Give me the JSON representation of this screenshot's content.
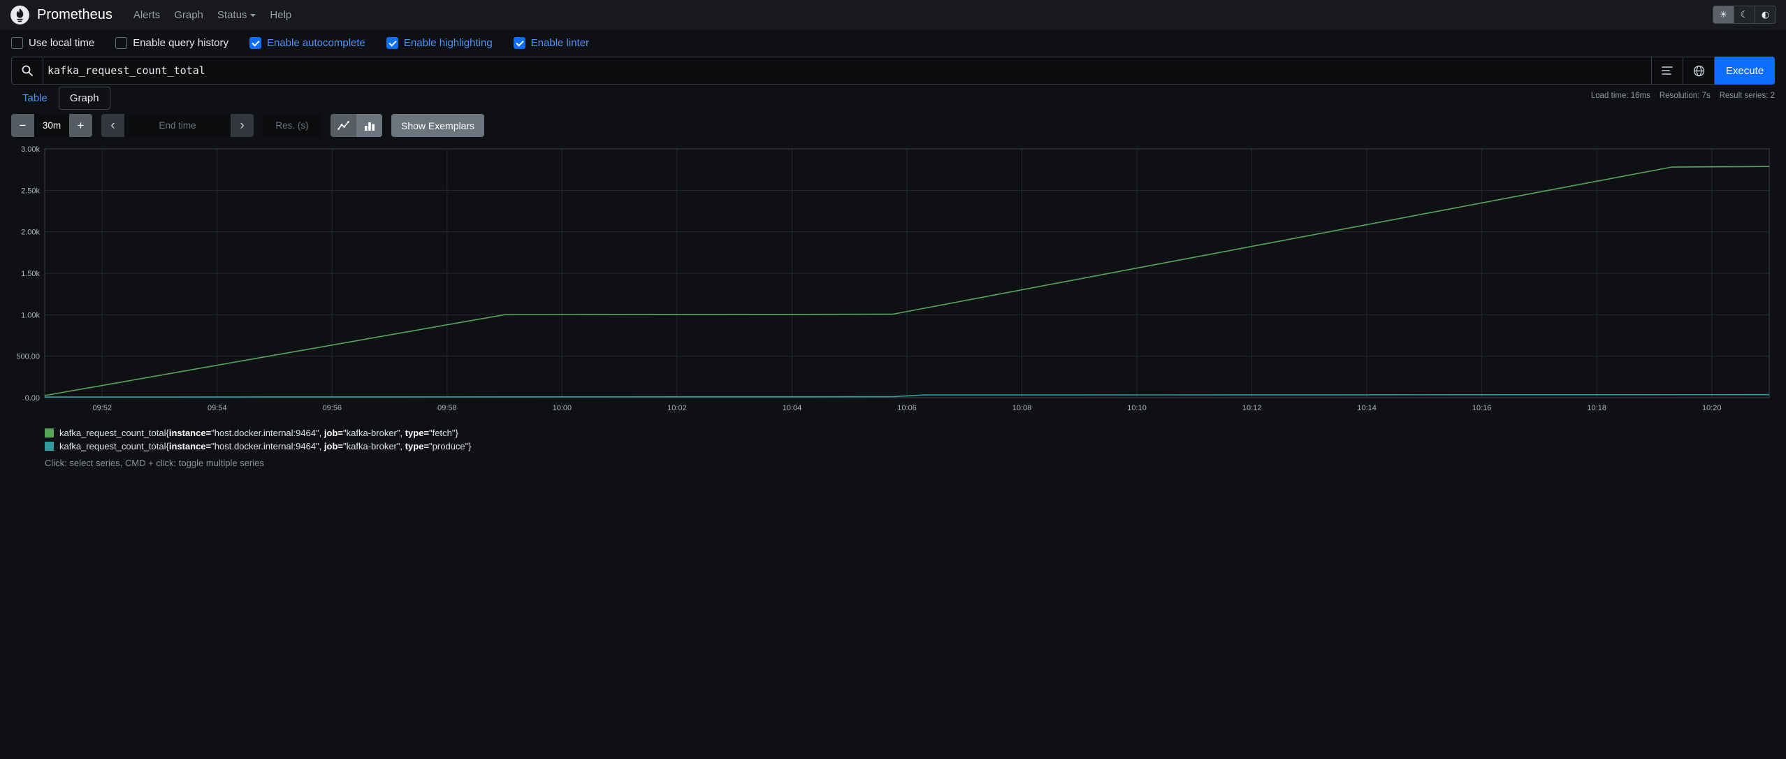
{
  "colors": {
    "accent_blue": "#0d6efd",
    "link_blue": "#4a94f8",
    "series_green": "#56a65a",
    "series_teal": "#2f9d9d"
  },
  "navbar": {
    "brand": "Prometheus",
    "links": [
      {
        "label": "Alerts"
      },
      {
        "label": "Graph"
      },
      {
        "label": "Status",
        "has_dropdown": true
      },
      {
        "label": "Help"
      }
    ],
    "theme_toggle": [
      {
        "name": "light",
        "icon": "sun-icon",
        "active": true
      },
      {
        "name": "dark",
        "icon": "moon-icon",
        "active": false
      },
      {
        "name": "auto",
        "icon": "circle-half-icon",
        "active": false
      }
    ]
  },
  "options_bar": {
    "items": [
      {
        "label": "Use local time",
        "checked": false
      },
      {
        "label": "Enable query history",
        "checked": false
      },
      {
        "label": "Enable autocomplete",
        "checked": true
      },
      {
        "label": "Enable highlighting",
        "checked": true
      },
      {
        "label": "Enable linter",
        "checked": true
      }
    ]
  },
  "query": {
    "value": "kafka_request_count_total",
    "execute_label": "Execute"
  },
  "stats": {
    "load_time": "Load time: 16ms",
    "resolution": "Resolution: 7s",
    "result_series": "Result series: 2"
  },
  "tabs": {
    "table": "Table",
    "graph": "Graph"
  },
  "controls": {
    "duration_value": "30m",
    "end_time_placeholder": "End time",
    "resolution_placeholder": "Res. (s)",
    "show_exemplars_label": "Show Exemplars"
  },
  "chart_data": {
    "type": "line",
    "x_axis": {
      "start_minutes": 0,
      "end_minutes": 30,
      "ticks": [
        {
          "t": 1,
          "label": "09:52"
        },
        {
          "t": 3,
          "label": "09:54"
        },
        {
          "t": 5,
          "label": "09:56"
        },
        {
          "t": 7,
          "label": "09:58"
        },
        {
          "t": 9,
          "label": "10:00"
        },
        {
          "t": 11,
          "label": "10:02"
        },
        {
          "t": 13,
          "label": "10:04"
        },
        {
          "t": 15,
          "label": "10:06"
        },
        {
          "t": 17,
          "label": "10:08"
        },
        {
          "t": 19,
          "label": "10:10"
        },
        {
          "t": 21,
          "label": "10:12"
        },
        {
          "t": 23,
          "label": "10:14"
        },
        {
          "t": 25,
          "label": "10:16"
        },
        {
          "t": 27,
          "label": "10:18"
        },
        {
          "t": 29,
          "label": "10:20"
        }
      ]
    },
    "y_axis": {
      "min": 0,
      "max": 3000,
      "ticks": [
        {
          "v": 0,
          "label": "0.00"
        },
        {
          "v": 500,
          "label": "500.00"
        },
        {
          "v": 1000,
          "label": "1.00k"
        },
        {
          "v": 1500,
          "label": "1.50k"
        },
        {
          "v": 2000,
          "label": "2.00k"
        },
        {
          "v": 2500,
          "label": "2.50k"
        },
        {
          "v": 3000,
          "label": "3.00k"
        }
      ]
    },
    "series": [
      {
        "metric": "kafka_request_count_total",
        "labels": [
          {
            "name": "instance",
            "value": "host.docker.internal:9464"
          },
          {
            "name": "job",
            "value": "kafka-broker"
          },
          {
            "name": "type",
            "value": "fetch"
          }
        ],
        "color": "#56a65a",
        "points": [
          [
            0,
            25
          ],
          [
            8,
            1000
          ],
          [
            14.75,
            1006
          ],
          [
            28.3,
            2780
          ],
          [
            30,
            2788
          ]
        ]
      },
      {
        "metric": "kafka_request_count_total",
        "labels": [
          {
            "name": "instance",
            "value": "host.docker.internal:9464"
          },
          {
            "name": "job",
            "value": "kafka-broker"
          },
          {
            "name": "type",
            "value": "produce"
          }
        ],
        "color": "#2f9d9d",
        "points": [
          [
            0,
            8
          ],
          [
            14.75,
            12
          ],
          [
            15.3,
            33
          ],
          [
            30,
            36
          ]
        ]
      }
    ]
  },
  "footer": {
    "hint": "Click: select series, CMD + click: toggle multiple series"
  }
}
